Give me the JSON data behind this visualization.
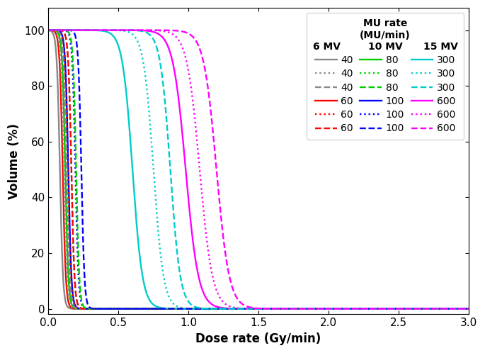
{
  "xlabel": "Dose rate (Gy/min)",
  "ylabel": "Volume (%)",
  "xlim": [
    0,
    3.0
  ],
  "ylim_min": -2,
  "ylim_max": 108,
  "yticks": [
    0,
    20,
    40,
    60,
    80,
    100
  ],
  "xticks": [
    0.0,
    0.5,
    1.0,
    1.5,
    2.0,
    2.5,
    3.0
  ],
  "colors": {
    "40": "#888888",
    "60": "#ff0000",
    "80": "#00cc00",
    "100": "#0000ff",
    "300": "#00cccc",
    "600": "#ff00ff"
  },
  "mu_rates": [
    "40",
    "60",
    "80",
    "100",
    "300",
    "600"
  ],
  "curve_params": {
    "6MV": {
      "40": {
        "x50": 0.082,
        "k": 90
      },
      "60": {
        "x50": 0.102,
        "k": 90
      },
      "80": {
        "x50": 0.12,
        "k": 90
      },
      "100": {
        "x50": 0.142,
        "k": 90
      },
      "300": {
        "x50": 0.6,
        "k": 28
      },
      "600": {
        "x50": 0.98,
        "k": 22
      }
    },
    "10MV": {
      "40": {
        "x50": 0.11,
        "k": 90
      },
      "60": {
        "x50": 0.138,
        "k": 90
      },
      "80": {
        "x50": 0.163,
        "k": 90
      },
      "100": {
        "x50": 0.192,
        "k": 90
      },
      "300": {
        "x50": 0.75,
        "k": 28
      },
      "600": {
        "x50": 1.08,
        "k": 22
      }
    },
    "15MV": {
      "40": {
        "x50": 0.13,
        "k": 90
      },
      "60": {
        "x50": 0.164,
        "k": 90
      },
      "80": {
        "x50": 0.198,
        "k": 90
      },
      "100": {
        "x50": 0.235,
        "k": 90
      },
      "300": {
        "x50": 0.87,
        "k": 28
      },
      "600": {
        "x50": 1.2,
        "k": 22
      }
    }
  },
  "linewidth": 1.7,
  "energies": [
    "6MV",
    "10MV",
    "15MV"
  ]
}
